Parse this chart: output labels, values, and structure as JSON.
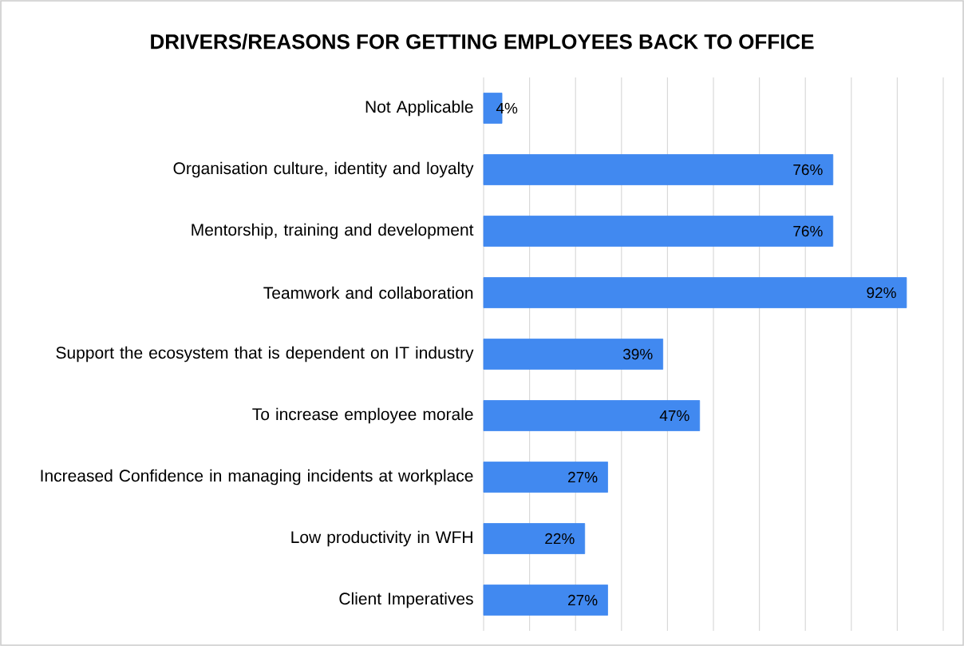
{
  "chart_data": {
    "type": "bar",
    "orientation": "horizontal",
    "title": "DRIVERS/REASONS FOR GETTING EMPLOYEES BACK TO OFFICE",
    "categories": [
      "Not Applicable",
      "Organisation culture, identity and loyalty",
      "Mentorship, training and development",
      "Teamwork and collaboration",
      "Support the ecosystem that is dependent on IT industry",
      "To increase employee morale",
      "Increased Confidence in managing incidents at workplace",
      "Low productivity in WFH",
      "Client Imperatives"
    ],
    "values": [
      4,
      76,
      76,
      92,
      39,
      47,
      27,
      22,
      27
    ],
    "value_labels": [
      "4%",
      "76%",
      "76%",
      "92%",
      "39%",
      "47%",
      "27%",
      "22%",
      "27%"
    ],
    "color": "#4189f0",
    "xlim": [
      0,
      100
    ],
    "xticks": [
      {
        "value": 0,
        "label": null
      },
      {
        "value": 10,
        "label": null
      },
      {
        "value": 20,
        "label": null
      },
      {
        "value": 30,
        "label": null
      },
      {
        "value": 40,
        "label": null
      },
      {
        "value": 50,
        "label": null
      },
      {
        "value": 60,
        "label": null
      },
      {
        "value": 70,
        "label": null
      },
      {
        "value": 80,
        "label": null
      },
      {
        "value": 90,
        "label": null
      },
      {
        "value": 100,
        "label": null
      }
    ],
    "grid": "x",
    "tick_labels": "y"
  }
}
